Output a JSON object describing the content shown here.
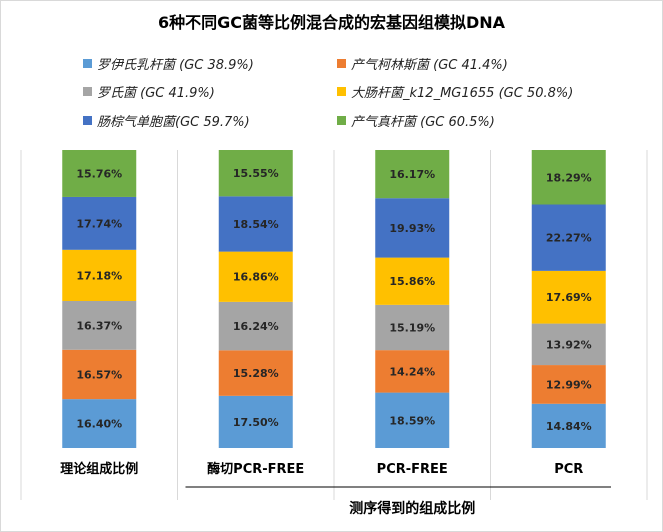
{
  "chart_data": {
    "type": "bar",
    "stacked": true,
    "percent_stacked": true,
    "title": "6种不同GC菌等比例混合成的宏基因组模拟DNA",
    "categories": [
      "理论组成比例",
      "酶切PCR-FREE",
      "PCR-FREE",
      "PCR"
    ],
    "group_label": "测序得到的组成比例",
    "legend_position": "top",
    "grid": false,
    "series": [
      {
        "name": "罗伊氏乳杆菌 (GC 38.9%)",
        "color": "#5b9bd5",
        "values": [
          16.4,
          17.5,
          18.59,
          14.84
        ],
        "labels": [
          "16.40%",
          "17.50%",
          "18.59%",
          "14.84%"
        ]
      },
      {
        "name": "产气柯林斯菌 (GC 41.4%)",
        "color": "#ed7d31",
        "values": [
          16.57,
          15.28,
          14.24,
          12.99
        ],
        "labels": [
          "16.57%",
          "15.28%",
          "14.24%",
          "12.99%"
        ]
      },
      {
        "name": "罗氏菌 (GC 41.9%)",
        "color": "#a5a5a5",
        "values": [
          16.37,
          16.24,
          15.19,
          13.92
        ],
        "labels": [
          "16.37%",
          "16.24%",
          "15.19%",
          "13.92%"
        ]
      },
      {
        "name": "大肠杆菌_k12_MG1655 (GC 50.8%)",
        "color": "#ffc000",
        "values": [
          17.18,
          16.86,
          15.86,
          17.69
        ],
        "labels": [
          "17.18%",
          "16.86%",
          "15.86%",
          "17.69%"
        ]
      },
      {
        "name": "肠棕气单胞菌(GC 59.7%)",
        "color": "#4472c4",
        "values": [
          17.74,
          18.54,
          19.93,
          22.27
        ],
        "labels": [
          "17.74%",
          "18.54%",
          "19.93%",
          "22.27%"
        ]
      },
      {
        "name": "产气真杆菌 (GC 60.5%)",
        "color": "#70ad47",
        "values": [
          15.76,
          15.55,
          16.17,
          18.29
        ],
        "labels": [
          "15.76%",
          "15.55%",
          "16.17%",
          "18.29%"
        ]
      }
    ]
  }
}
